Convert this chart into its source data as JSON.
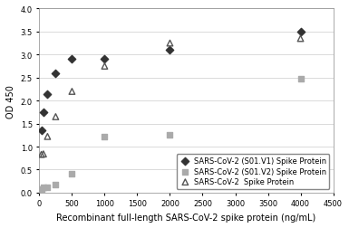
{
  "title": "",
  "xlabel": "Recombinant full-length SARS-CoV-2 spike protein (ng/mL)",
  "ylabel": "OD 450",
  "xlim": [
    0,
    4500
  ],
  "ylim": [
    0,
    4.0
  ],
  "yticks": [
    0,
    0.5,
    1.0,
    1.5,
    2.0,
    2.5,
    3.0,
    3.5,
    4.0
  ],
  "xticks": [
    0,
    500,
    1000,
    1500,
    2000,
    2500,
    3000,
    3500,
    4000,
    4500
  ],
  "series1_name": "SARS-CoV-2 (S01.V1) Spike Protein",
  "series1_x": [
    31.25,
    62.5,
    125,
    250,
    500,
    1000,
    2000,
    4000
  ],
  "series1_y": [
    1.35,
    1.75,
    2.15,
    2.6,
    2.9,
    2.9,
    3.1,
    3.5
  ],
  "series1_color": "#333333",
  "series1_marker": "D",
  "series1_line": "dashed",
  "series2_name": "SARS-CoV-2 (S01.V2) Spike Protein",
  "series2_x": [
    31.25,
    62.5,
    125,
    250,
    500,
    1000,
    2000,
    4000
  ],
  "series2_y": [
    0.08,
    0.11,
    0.12,
    0.18,
    0.42,
    1.22,
    1.25,
    2.47
  ],
  "series2_color": "#aaaaaa",
  "series2_marker": "s",
  "series2_line": "solid",
  "series3_name": "SARS-CoV-2  Spike Protein",
  "series3_x": [
    31.25,
    62.5,
    125,
    250,
    500,
    1000,
    2000,
    4000
  ],
  "series3_y": [
    0.83,
    0.84,
    1.22,
    1.65,
    2.2,
    2.75,
    3.25,
    3.35
  ],
  "series3_color": "#555555",
  "series3_marker": "^",
  "series3_line": "solid",
  "background_color": "#ffffff",
  "grid_color": "#cccccc",
  "fontsize_labels": 7,
  "fontsize_ticks": 6,
  "fontsize_legend": 6
}
